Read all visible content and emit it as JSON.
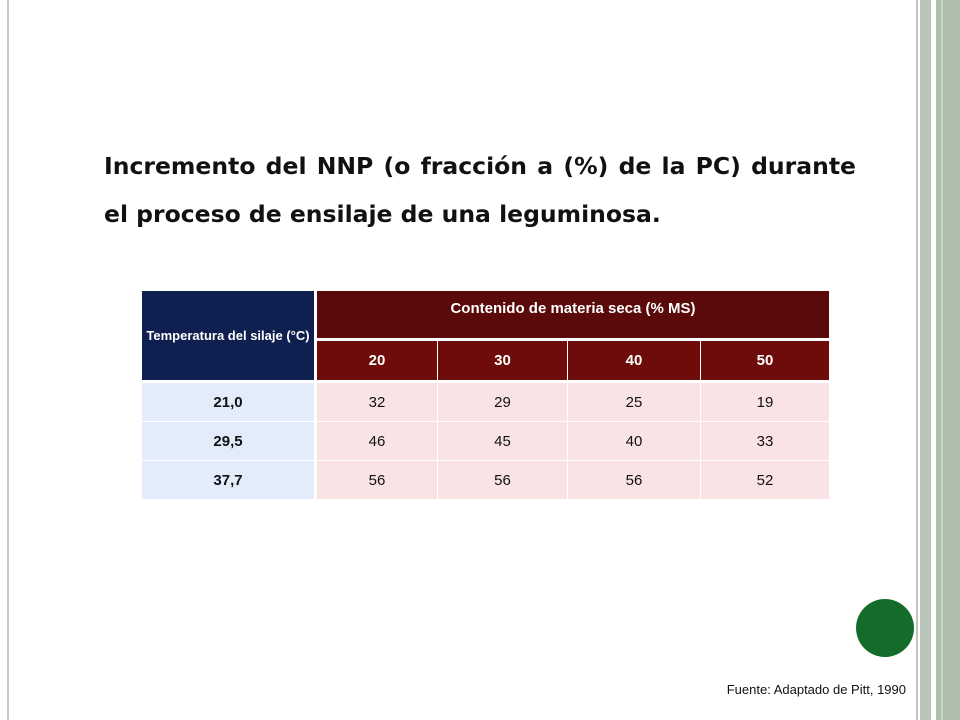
{
  "slide": {
    "title": "Incremento del NNP (o fracción a (%) de la PC) durante el proceso de ensilaje de una leguminosa.",
    "source": "Fuente: Adaptado de Pitt, 1990",
    "colors": {
      "header_navy": "#0f1f4f",
      "header_maroon": "#6e0b0b",
      "row_blue": "#e3ecfa",
      "cell_pink": "#fae3e4",
      "accent_green": "#156b2a"
    }
  },
  "table": {
    "row_header_label": "Temperatura  del silaje (°C)",
    "group_header": "Contenido de materia seca (% MS)",
    "columns": [
      "20",
      "30",
      "40",
      "50"
    ],
    "rows": [
      {
        "temp": "21,0",
        "values": [
          "32",
          "29",
          "25",
          "19"
        ]
      },
      {
        "temp": "29,5",
        "values": [
          "46",
          "45",
          "40",
          "33"
        ]
      },
      {
        "temp": "37,7",
        "values": [
          "56",
          "56",
          "56",
          "52"
        ]
      }
    ]
  }
}
